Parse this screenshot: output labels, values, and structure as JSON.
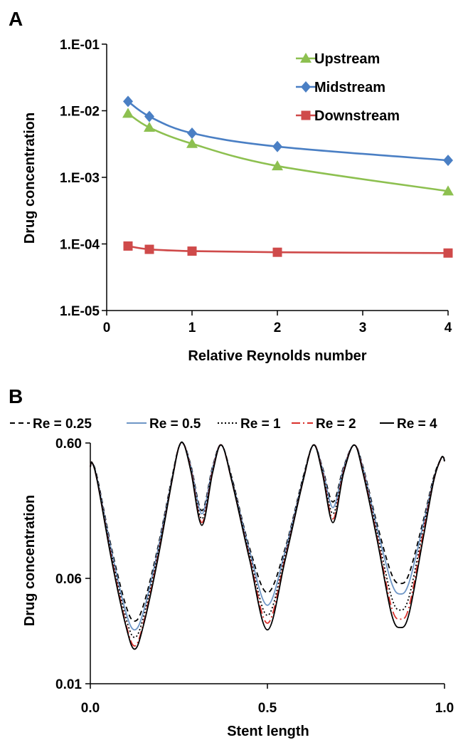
{
  "panels": {
    "a": "A",
    "b": "B"
  },
  "chart_data": [
    {
      "type": "line",
      "panel": "A",
      "xlabel": "Relative Reynolds number",
      "ylabel": "Drug concentration",
      "y_scale": "log",
      "ylim": [
        1e-05,
        0.1
      ],
      "xlim": [
        0,
        4
      ],
      "x_tick_labels": [
        "0",
        "1",
        "2",
        "3",
        "4"
      ],
      "y_tick_labels": [
        "1.E-05",
        "1.E-04",
        "1.E-03",
        "1.E-02",
        "1.E-01"
      ],
      "legend_position": "top-right",
      "x": [
        0.25,
        0.5,
        1,
        2,
        4
      ],
      "series": [
        {
          "name": "Upstream",
          "marker": "triangle",
          "color": "#8dc050",
          "values": [
            0.0091,
            0.0056,
            0.0032,
            0.00148,
            0.00062
          ]
        },
        {
          "name": "Midstream",
          "marker": "diamond",
          "color": "#4a7fc4",
          "values": [
            0.0138,
            0.0082,
            0.0046,
            0.0029,
            0.0018
          ]
        },
        {
          "name": "Downstream",
          "marker": "square",
          "color": "#cf4a4a",
          "values": [
            9.3e-05,
            8.3e-05,
            7.8e-05,
            7.5e-05,
            7.3e-05
          ]
        }
      ]
    },
    {
      "type": "line",
      "panel": "B",
      "xlabel": "Stent length",
      "ylabel": "Drug concentration",
      "y_scale": "log",
      "ylim": [
        0.01,
        0.6
      ],
      "xlim": [
        0,
        1
      ],
      "x_tick_labels": [
        "0.0",
        "0.5",
        "1.0"
      ],
      "y_tick_labels": [
        "0.01",
        "0.06",
        "0.60"
      ],
      "legend_position": "top",
      "x": [
        0.0,
        0.005,
        0.02,
        0.06,
        0.1,
        0.125,
        0.15,
        0.19,
        0.23,
        0.25,
        0.265,
        0.285,
        0.315,
        0.345,
        0.37,
        0.4,
        0.45,
        0.5,
        0.55,
        0.6,
        0.63,
        0.655,
        0.685,
        0.715,
        0.745,
        0.77,
        0.81,
        0.85,
        0.875,
        0.9,
        0.94,
        0.97,
        0.99,
        0.997,
        1.0
      ],
      "series": [
        {
          "name": "Re = 0.25",
          "style": "dashed",
          "color": "#000000",
          "values": [
            0.4,
            0.43,
            0.33,
            0.1,
            0.038,
            0.029,
            0.038,
            0.1,
            0.33,
            0.56,
            0.58,
            0.4,
            0.19,
            0.4,
            0.58,
            0.33,
            0.1,
            0.047,
            0.1,
            0.33,
            0.58,
            0.4,
            0.22,
            0.4,
            0.58,
            0.4,
            0.15,
            0.065,
            0.055,
            0.065,
            0.16,
            0.34,
            0.46,
            0.47,
            0.44
          ]
        },
        {
          "name": "Re = 0.5",
          "style": "solid",
          "color": "#6f96c6",
          "values": [
            0.4,
            0.43,
            0.32,
            0.095,
            0.034,
            0.025,
            0.034,
            0.095,
            0.32,
            0.56,
            0.58,
            0.39,
            0.18,
            0.39,
            0.58,
            0.32,
            0.095,
            0.038,
            0.095,
            0.32,
            0.58,
            0.39,
            0.2,
            0.39,
            0.58,
            0.39,
            0.14,
            0.056,
            0.046,
            0.056,
            0.15,
            0.33,
            0.46,
            0.47,
            0.44
          ]
        },
        {
          "name": "Re = 1",
          "style": "dotted",
          "color": "#000000",
          "values": [
            0.4,
            0.43,
            0.32,
            0.09,
            0.031,
            0.022,
            0.031,
            0.09,
            0.32,
            0.56,
            0.58,
            0.38,
            0.165,
            0.38,
            0.58,
            0.32,
            0.09,
            0.032,
            0.09,
            0.32,
            0.58,
            0.38,
            0.18,
            0.38,
            0.58,
            0.38,
            0.13,
            0.044,
            0.035,
            0.044,
            0.14,
            0.33,
            0.46,
            0.47,
            0.44
          ]
        },
        {
          "name": "Re = 2",
          "style": "dashdot",
          "color": "#d9302b",
          "values": [
            0.4,
            0.43,
            0.31,
            0.085,
            0.028,
            0.019,
            0.028,
            0.085,
            0.31,
            0.56,
            0.58,
            0.37,
            0.155,
            0.37,
            0.58,
            0.31,
            0.085,
            0.028,
            0.085,
            0.31,
            0.58,
            0.37,
            0.165,
            0.37,
            0.58,
            0.37,
            0.12,
            0.037,
            0.03,
            0.037,
            0.13,
            0.32,
            0.46,
            0.47,
            0.44
          ]
        },
        {
          "name": "Re = 4",
          "style": "solid",
          "color": "#000000",
          "values": [
            0.4,
            0.43,
            0.31,
            0.082,
            0.027,
            0.018,
            0.027,
            0.082,
            0.31,
            0.56,
            0.58,
            0.36,
            0.148,
            0.36,
            0.58,
            0.31,
            0.082,
            0.025,
            0.082,
            0.31,
            0.58,
            0.36,
            0.155,
            0.36,
            0.58,
            0.36,
            0.115,
            0.033,
            0.026,
            0.033,
            0.12,
            0.32,
            0.46,
            0.47,
            0.44
          ]
        }
      ]
    }
  ]
}
